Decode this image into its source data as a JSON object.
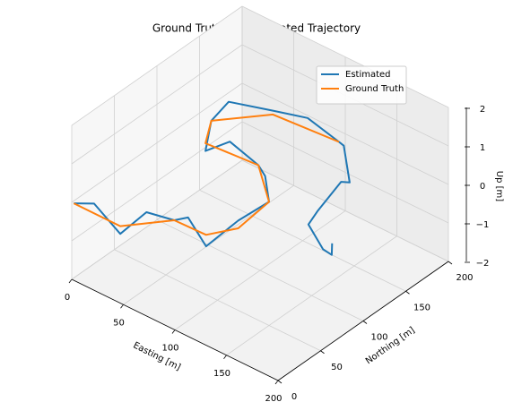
{
  "chart_data": {
    "type": "line3d",
    "title": "Ground Truth and Estimated Trajectory",
    "xlabel": "Easting [m]",
    "ylabel": "Northing [m]",
    "zlabel": "Up [m]",
    "xlim": [
      0,
      200
    ],
    "ylim": [
      0,
      200
    ],
    "zlim": [
      -2,
      2
    ],
    "xticks": [
      0,
      50,
      100,
      150,
      200
    ],
    "yticks": [
      0,
      50,
      100,
      150,
      200
    ],
    "zticks": [
      {
        "value": -2,
        "label": "−2"
      },
      {
        "value": -1,
        "label": "−1"
      },
      0,
      1,
      2
    ],
    "grid": true,
    "legend": "upper right",
    "series": [
      {
        "name": "Estimated",
        "color": "#1f77b4",
        "x": [
          2,
          20,
          47,
          60,
          73,
          88,
          103,
          116,
          112,
          95,
          76,
          50,
          28,
          13,
          20,
          43,
          75,
          103,
          115,
          139,
          143,
          147,
          156,
          175,
          191,
          188
        ],
        "y": [
          0,
          2,
          0,
          15,
          32,
          30,
          33,
          55,
          96,
          112,
          127,
          125,
          123,
          148,
          160,
          184,
          186,
          189,
          180,
          158,
          143,
          111,
          89,
          83,
          74,
          78
        ],
        "z": [
          0,
          0.2,
          -0.2,
          0.3,
          0,
          0.3,
          -0.3,
          0.2,
          0,
          0.2,
          0,
          0.3,
          -0.2,
          0,
          0.4,
          0.1,
          0.3,
          0,
          0.2,
          -0.1,
          0.2,
          0,
          0.1,
          -0.2,
          0,
          0.2
        ]
      },
      {
        "name": "Ground Truth",
        "color": "#ff7f0e",
        "x": [
          2,
          47,
          73,
          103,
          116,
          112,
          76,
          28,
          13,
          43,
          103
        ],
        "y": [
          0,
          0,
          32,
          33,
          55,
          96,
          127,
          123,
          148,
          184,
          189
        ],
        "z": [
          0,
          0,
          0,
          0,
          0,
          0,
          0,
          0,
          0,
          0,
          0
        ]
      }
    ]
  }
}
